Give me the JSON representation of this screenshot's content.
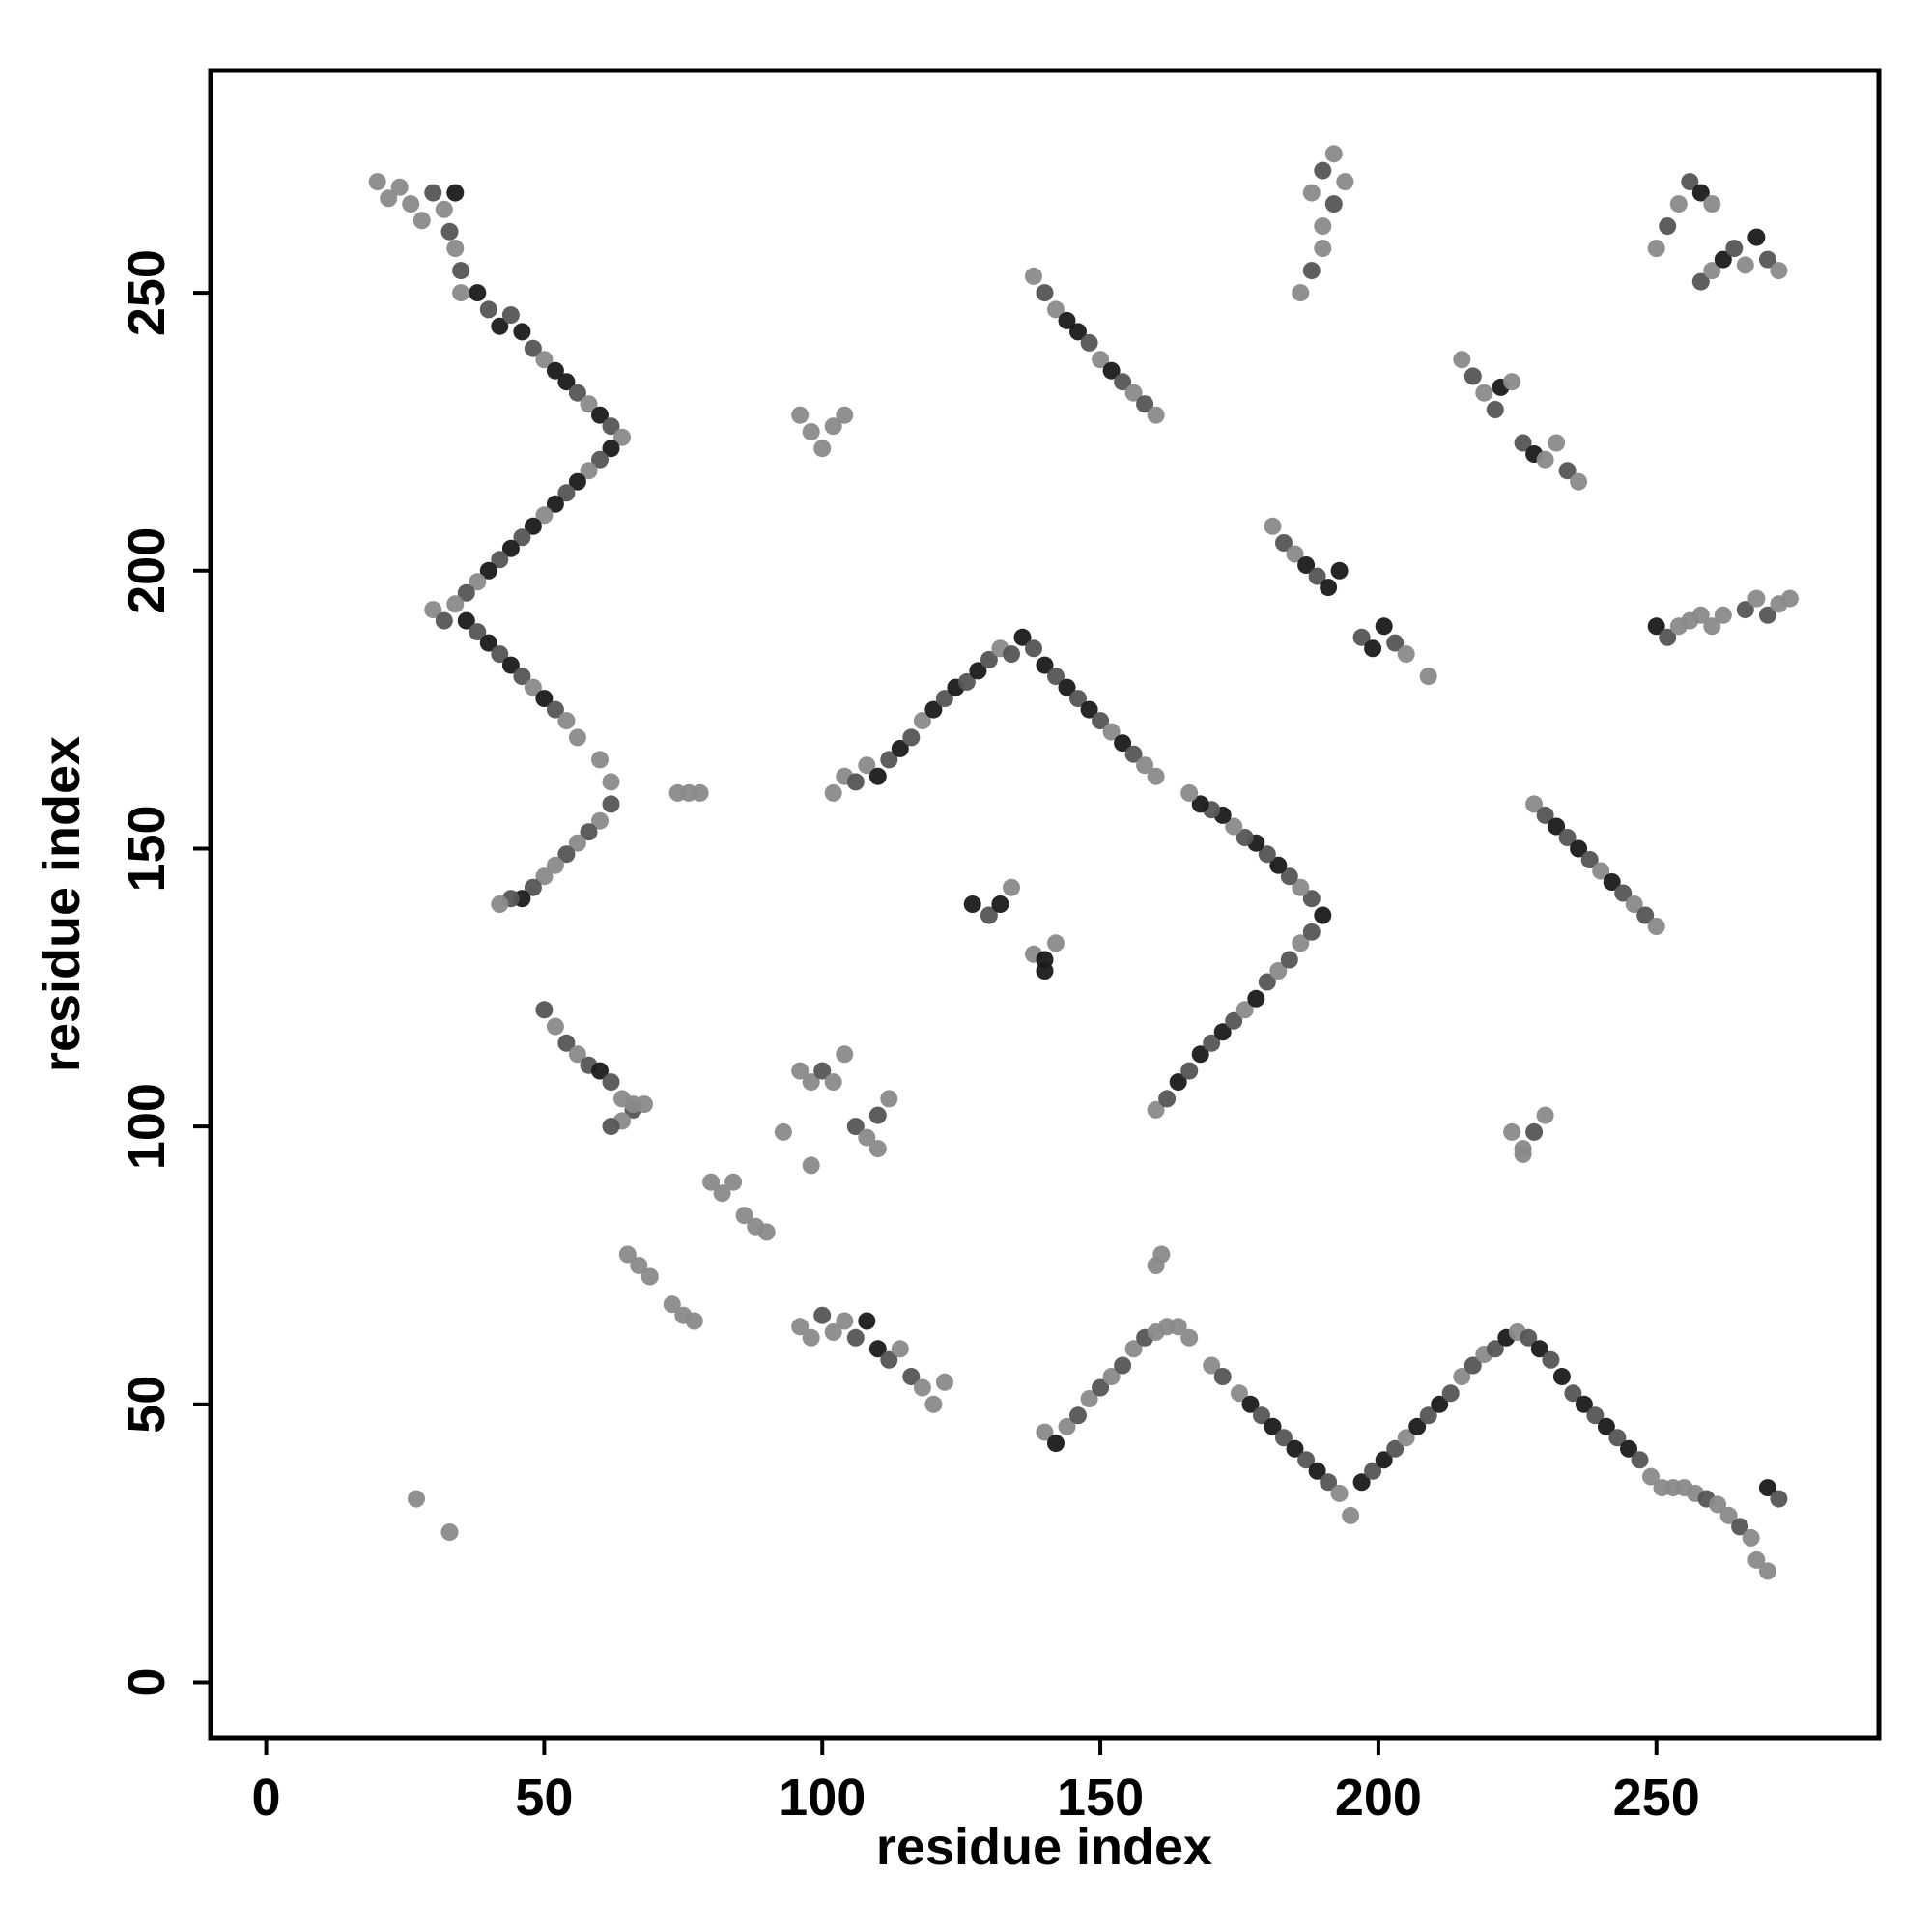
{
  "chart_data": {
    "type": "scatter",
    "xlabel": "residue index",
    "ylabel": "residue index",
    "xlim": [
      -10,
      290
    ],
    "ylim": [
      -10,
      290
    ],
    "x_ticks": [
      0,
      50,
      100,
      150,
      200,
      250
    ],
    "y_ticks": [
      0,
      50,
      100,
      150,
      200,
      250
    ],
    "grid": false,
    "colors": {
      "light": "#8a8a8a",
      "mid": "#555555",
      "dark": "#1a1a1a",
      "axis": "#000000"
    },
    "points": [
      [
        20,
        270,
        "l"
      ],
      [
        22,
        267,
        "l"
      ],
      [
        24,
        269,
        "l"
      ],
      [
        26,
        266,
        "l"
      ],
      [
        28,
        263,
        "l"
      ],
      [
        30,
        268,
        "m"
      ],
      [
        32,
        265,
        "l"
      ],
      [
        33,
        261,
        "m"
      ],
      [
        34,
        258,
        "l"
      ],
      [
        35,
        254,
        "m"
      ],
      [
        35,
        250,
        "l"
      ],
      [
        34,
        268,
        "d"
      ],
      [
        38,
        250,
        "d"
      ],
      [
        40,
        247,
        "m"
      ],
      [
        42,
        244,
        "d"
      ],
      [
        44,
        246,
        "m"
      ],
      [
        46,
        243,
        "d"
      ],
      [
        48,
        240,
        "m"
      ],
      [
        50,
        238,
        "l"
      ],
      [
        52,
        236,
        "d"
      ],
      [
        54,
        234,
        "d"
      ],
      [
        56,
        232,
        "m"
      ],
      [
        58,
        230,
        "l"
      ],
      [
        60,
        228,
        "d"
      ],
      [
        62,
        226,
        "m"
      ],
      [
        64,
        224,
        "l"
      ],
      [
        62,
        222,
        "d"
      ],
      [
        60,
        220,
        "m"
      ],
      [
        58,
        218,
        "l"
      ],
      [
        56,
        216,
        "d"
      ],
      [
        54,
        214,
        "m"
      ],
      [
        52,
        212,
        "d"
      ],
      [
        50,
        210,
        "l"
      ],
      [
        48,
        208,
        "d"
      ],
      [
        46,
        206,
        "m"
      ],
      [
        44,
        204,
        "d"
      ],
      [
        42,
        202,
        "m"
      ],
      [
        40,
        200,
        "d"
      ],
      [
        38,
        198,
        "l"
      ],
      [
        36,
        196,
        "m"
      ],
      [
        34,
        194,
        "l"
      ],
      [
        30,
        193,
        "l"
      ],
      [
        32,
        191,
        "m"
      ],
      [
        36,
        191,
        "d"
      ],
      [
        38,
        189,
        "m"
      ],
      [
        40,
        187,
        "d"
      ],
      [
        42,
        185,
        "m"
      ],
      [
        44,
        183,
        "d"
      ],
      [
        46,
        181,
        "m"
      ],
      [
        48,
        179,
        "l"
      ],
      [
        50,
        177,
        "d"
      ],
      [
        52,
        175,
        "m"
      ],
      [
        54,
        173,
        "l"
      ],
      [
        56,
        170,
        "l"
      ],
      [
        60,
        166,
        "l"
      ],
      [
        62,
        162,
        "l"
      ],
      [
        62,
        158,
        "m"
      ],
      [
        60,
        155,
        "l"
      ],
      [
        58,
        153,
        "m"
      ],
      [
        56,
        151,
        "l"
      ],
      [
        54,
        149,
        "m"
      ],
      [
        52,
        147,
        "l"
      ],
      [
        50,
        145,
        "l"
      ],
      [
        48,
        143,
        "m"
      ],
      [
        46,
        141,
        "d"
      ],
      [
        44,
        141,
        "m"
      ],
      [
        42,
        140,
        "l"
      ],
      [
        50,
        121,
        "m"
      ],
      [
        52,
        118,
        "l"
      ],
      [
        54,
        115,
        "m"
      ],
      [
        56,
        113,
        "l"
      ],
      [
        58,
        111,
        "m"
      ],
      [
        60,
        110,
        "d"
      ],
      [
        62,
        108,
        "m"
      ],
      [
        64,
        105,
        "l"
      ],
      [
        66,
        103,
        "m"
      ],
      [
        64,
        101,
        "l"
      ],
      [
        62,
        100,
        "m"
      ],
      [
        66,
        104,
        "l"
      ],
      [
        68,
        104,
        "l"
      ],
      [
        27,
        33,
        "l"
      ],
      [
        33,
        27,
        "l"
      ],
      [
        74,
        160,
        "l"
      ],
      [
        76,
        160,
        "l"
      ],
      [
        78,
        160,
        "l"
      ],
      [
        96,
        228,
        "l"
      ],
      [
        98,
        225,
        "l"
      ],
      [
        100,
        222,
        "l"
      ],
      [
        102,
        226,
        "l"
      ],
      [
        104,
        228,
        "l"
      ],
      [
        102,
        160,
        "l"
      ],
      [
        104,
        163,
        "l"
      ],
      [
        106,
        162,
        "m"
      ],
      [
        108,
        165,
        "l"
      ],
      [
        110,
        163,
        "d"
      ],
      [
        112,
        166,
        "m"
      ],
      [
        114,
        168,
        "d"
      ],
      [
        116,
        170,
        "m"
      ],
      [
        118,
        173,
        "l"
      ],
      [
        120,
        175,
        "d"
      ],
      [
        122,
        177,
        "m"
      ],
      [
        124,
        179,
        "d"
      ],
      [
        126,
        180,
        "m"
      ],
      [
        128,
        182,
        "d"
      ],
      [
        130,
        184,
        "m"
      ],
      [
        132,
        186,
        "l"
      ],
      [
        134,
        185,
        "m"
      ],
      [
        136,
        188,
        "d"
      ],
      [
        138,
        186,
        "m"
      ],
      [
        140,
        183,
        "d"
      ],
      [
        142,
        181,
        "m"
      ],
      [
        144,
        179,
        "d"
      ],
      [
        146,
        177,
        "m"
      ],
      [
        148,
        175,
        "d"
      ],
      [
        150,
        173,
        "m"
      ],
      [
        152,
        171,
        "l"
      ],
      [
        154,
        169,
        "d"
      ],
      [
        156,
        167,
        "m"
      ],
      [
        158,
        165,
        "l"
      ],
      [
        160,
        163,
        "l"
      ],
      [
        127,
        140,
        "d"
      ],
      [
        130,
        138,
        "m"
      ],
      [
        132,
        140,
        "d"
      ],
      [
        134,
        143,
        "l"
      ],
      [
        138,
        131,
        "l"
      ],
      [
        140,
        130,
        "d"
      ],
      [
        142,
        133,
        "l"
      ],
      [
        140,
        128,
        "d"
      ],
      [
        138,
        253,
        "l"
      ],
      [
        140,
        250,
        "m"
      ],
      [
        142,
        247,
        "l"
      ],
      [
        144,
        245,
        "d"
      ],
      [
        146,
        243,
        "d"
      ],
      [
        148,
        241,
        "m"
      ],
      [
        150,
        238,
        "l"
      ],
      [
        152,
        236,
        "d"
      ],
      [
        154,
        234,
        "m"
      ],
      [
        156,
        232,
        "l"
      ],
      [
        158,
        230,
        "m"
      ],
      [
        160,
        228,
        "l"
      ],
      [
        96,
        110,
        "l"
      ],
      [
        98,
        108,
        "l"
      ],
      [
        100,
        110,
        "m"
      ],
      [
        102,
        108,
        "l"
      ],
      [
        104,
        113,
        "l"
      ],
      [
        106,
        100,
        "m"
      ],
      [
        108,
        98,
        "l"
      ],
      [
        110,
        102,
        "m"
      ],
      [
        112,
        105,
        "l"
      ],
      [
        110,
        96,
        "l"
      ],
      [
        93,
        99,
        "l"
      ],
      [
        98,
        93,
        "l"
      ],
      [
        80,
        90,
        "l"
      ],
      [
        82,
        88,
        "l"
      ],
      [
        84,
        90,
        "l"
      ],
      [
        86,
        84,
        "l"
      ],
      [
        88,
        82,
        "l"
      ],
      [
        90,
        81,
        "l"
      ],
      [
        65,
        77,
        "l"
      ],
      [
        67,
        75,
        "l"
      ],
      [
        69,
        73,
        "l"
      ],
      [
        73,
        68,
        "l"
      ],
      [
        75,
        66,
        "l"
      ],
      [
        77,
        65,
        "l"
      ],
      [
        96,
        64,
        "l"
      ],
      [
        98,
        62,
        "l"
      ],
      [
        100,
        66,
        "m"
      ],
      [
        102,
        63,
        "l"
      ],
      [
        104,
        65,
        "l"
      ],
      [
        106,
        62,
        "m"
      ],
      [
        108,
        65,
        "d"
      ],
      [
        110,
        60,
        "d"
      ],
      [
        112,
        58,
        "m"
      ],
      [
        114,
        60,
        "l"
      ],
      [
        116,
        55,
        "m"
      ],
      [
        118,
        53,
        "l"
      ],
      [
        120,
        50,
        "l"
      ],
      [
        122,
        54,
        "l"
      ],
      [
        140,
        45,
        "l"
      ],
      [
        142,
        43,
        "d"
      ],
      [
        144,
        46,
        "l"
      ],
      [
        146,
        48,
        "m"
      ],
      [
        148,
        51,
        "l"
      ],
      [
        150,
        53,
        "m"
      ],
      [
        152,
        55,
        "l"
      ],
      [
        154,
        57,
        "m"
      ],
      [
        156,
        60,
        "l"
      ],
      [
        158,
        62,
        "m"
      ],
      [
        160,
        63,
        "l"
      ],
      [
        162,
        64,
        "l"
      ],
      [
        164,
        64,
        "l"
      ],
      [
        166,
        62,
        "l"
      ],
      [
        160,
        75,
        "l"
      ],
      [
        161,
        77,
        "l"
      ],
      [
        160,
        103,
        "l"
      ],
      [
        162,
        105,
        "m"
      ],
      [
        164,
        108,
        "d"
      ],
      [
        166,
        110,
        "m"
      ],
      [
        168,
        113,
        "d"
      ],
      [
        170,
        115,
        "m"
      ],
      [
        172,
        117,
        "d"
      ],
      [
        174,
        119,
        "m"
      ],
      [
        176,
        121,
        "l"
      ],
      [
        178,
        123,
        "d"
      ],
      [
        180,
        126,
        "m"
      ],
      [
        182,
        128,
        "l"
      ],
      [
        184,
        130,
        "m"
      ],
      [
        186,
        133,
        "l"
      ],
      [
        188,
        135,
        "m"
      ],
      [
        190,
        138,
        "d"
      ],
      [
        188,
        141,
        "m"
      ],
      [
        186,
        143,
        "l"
      ],
      [
        184,
        145,
        "m"
      ],
      [
        182,
        147,
        "d"
      ],
      [
        180,
        149,
        "m"
      ],
      [
        178,
        151,
        "d"
      ],
      [
        176,
        152,
        "m"
      ],
      [
        174,
        154,
        "l"
      ],
      [
        172,
        156,
        "d"
      ],
      [
        170,
        157,
        "m"
      ],
      [
        168,
        158,
        "d"
      ],
      [
        166,
        160,
        "l"
      ],
      [
        186,
        250,
        "l"
      ],
      [
        188,
        254,
        "m"
      ],
      [
        190,
        258,
        "l"
      ],
      [
        190,
        262,
        "l"
      ],
      [
        192,
        266,
        "m"
      ],
      [
        194,
        270,
        "l"
      ],
      [
        192,
        275,
        "l"
      ],
      [
        190,
        272,
        "m"
      ],
      [
        188,
        268,
        "l"
      ],
      [
        181,
        208,
        "l"
      ],
      [
        183,
        205,
        "m"
      ],
      [
        185,
        203,
        "l"
      ],
      [
        187,
        201,
        "d"
      ],
      [
        189,
        199,
        "m"
      ],
      [
        191,
        197,
        "d"
      ],
      [
        193,
        200,
        "d"
      ],
      [
        197,
        188,
        "m"
      ],
      [
        199,
        186,
        "d"
      ],
      [
        201,
        190,
        "d"
      ],
      [
        203,
        187,
        "m"
      ],
      [
        205,
        185,
        "l"
      ],
      [
        209,
        181,
        "l"
      ],
      [
        170,
        57,
        "l"
      ],
      [
        172,
        55,
        "m"
      ],
      [
        175,
        52,
        "l"
      ],
      [
        177,
        50,
        "d"
      ],
      [
        179,
        48,
        "m"
      ],
      [
        181,
        46,
        "d"
      ],
      [
        183,
        44,
        "m"
      ],
      [
        185,
        42,
        "d"
      ],
      [
        187,
        40,
        "m"
      ],
      [
        189,
        38,
        "d"
      ],
      [
        191,
        36,
        "m"
      ],
      [
        193,
        34,
        "l"
      ],
      [
        195,
        30,
        "l"
      ],
      [
        197,
        36,
        "d"
      ],
      [
        199,
        38,
        "m"
      ],
      [
        201,
        40,
        "d"
      ],
      [
        203,
        42,
        "m"
      ],
      [
        205,
        44,
        "l"
      ],
      [
        207,
        46,
        "d"
      ],
      [
        209,
        48,
        "m"
      ],
      [
        211,
        50,
        "d"
      ],
      [
        213,
        52,
        "m"
      ],
      [
        215,
        55,
        "l"
      ],
      [
        217,
        57,
        "m"
      ],
      [
        219,
        59,
        "l"
      ],
      [
        221,
        60,
        "m"
      ],
      [
        223,
        62,
        "d"
      ],
      [
        225,
        63,
        "l"
      ],
      [
        227,
        62,
        "m"
      ],
      [
        229,
        60,
        "d"
      ],
      [
        231,
        58,
        "m"
      ],
      [
        233,
        55,
        "d"
      ],
      [
        235,
        52,
        "m"
      ],
      [
        237,
        50,
        "d"
      ],
      [
        239,
        48,
        "m"
      ],
      [
        241,
        46,
        "d"
      ],
      [
        243,
        44,
        "m"
      ],
      [
        245,
        42,
        "d"
      ],
      [
        247,
        40,
        "m"
      ],
      [
        249,
        37,
        "l"
      ],
      [
        251,
        35,
        "l"
      ],
      [
        253,
        35,
        "l"
      ],
      [
        255,
        35,
        "l"
      ],
      [
        257,
        34,
        "l"
      ],
      [
        259,
        33,
        "m"
      ],
      [
        261,
        32,
        "l"
      ],
      [
        263,
        30,
        "l"
      ],
      [
        265,
        28,
        "m"
      ],
      [
        267,
        26,
        "l"
      ],
      [
        268,
        22,
        "l"
      ],
      [
        270,
        20,
        "l"
      ],
      [
        270,
        35,
        "d"
      ],
      [
        272,
        33,
        "m"
      ],
      [
        215,
        238,
        "l"
      ],
      [
        217,
        235,
        "m"
      ],
      [
        219,
        232,
        "l"
      ],
      [
        221,
        229,
        "m"
      ],
      [
        222,
        233,
        "d"
      ],
      [
        224,
        234,
        "l"
      ],
      [
        226,
        223,
        "m"
      ],
      [
        228,
        221,
        "d"
      ],
      [
        230,
        220,
        "l"
      ],
      [
        232,
        223,
        "l"
      ],
      [
        234,
        218,
        "m"
      ],
      [
        236,
        216,
        "l"
      ],
      [
        224,
        99,
        "l"
      ],
      [
        226,
        96,
        "l"
      ],
      [
        228,
        99,
        "m"
      ],
      [
        230,
        102,
        "l"
      ],
      [
        226,
        95,
        "l"
      ],
      [
        228,
        158,
        "l"
      ],
      [
        230,
        156,
        "m"
      ],
      [
        232,
        154,
        "d"
      ],
      [
        234,
        152,
        "m"
      ],
      [
        236,
        150,
        "d"
      ],
      [
        238,
        148,
        "m"
      ],
      [
        240,
        146,
        "l"
      ],
      [
        242,
        144,
        "d"
      ],
      [
        244,
        142,
        "m"
      ],
      [
        246,
        140,
        "l"
      ],
      [
        248,
        138,
        "m"
      ],
      [
        250,
        136,
        "l"
      ],
      [
        250,
        190,
        "d"
      ],
      [
        252,
        188,
        "m"
      ],
      [
        254,
        190,
        "l"
      ],
      [
        256,
        191,
        "l"
      ],
      [
        258,
        192,
        "l"
      ],
      [
        260,
        190,
        "l"
      ],
      [
        262,
        192,
        "l"
      ],
      [
        266,
        193,
        "m"
      ],
      [
        268,
        195,
        "l"
      ],
      [
        270,
        192,
        "m"
      ],
      [
        272,
        194,
        "l"
      ],
      [
        274,
        195,
        "l"
      ],
      [
        250,
        258,
        "l"
      ],
      [
        252,
        262,
        "m"
      ],
      [
        254,
        266,
        "l"
      ],
      [
        256,
        270,
        "m"
      ],
      [
        258,
        268,
        "d"
      ],
      [
        260,
        266,
        "l"
      ],
      [
        258,
        252,
        "m"
      ],
      [
        260,
        254,
        "l"
      ],
      [
        262,
        256,
        "d"
      ],
      [
        264,
        258,
        "m"
      ],
      [
        266,
        255,
        "l"
      ],
      [
        268,
        260,
        "d"
      ],
      [
        270,
        256,
        "m"
      ],
      [
        272,
        254,
        "l"
      ]
    ]
  }
}
